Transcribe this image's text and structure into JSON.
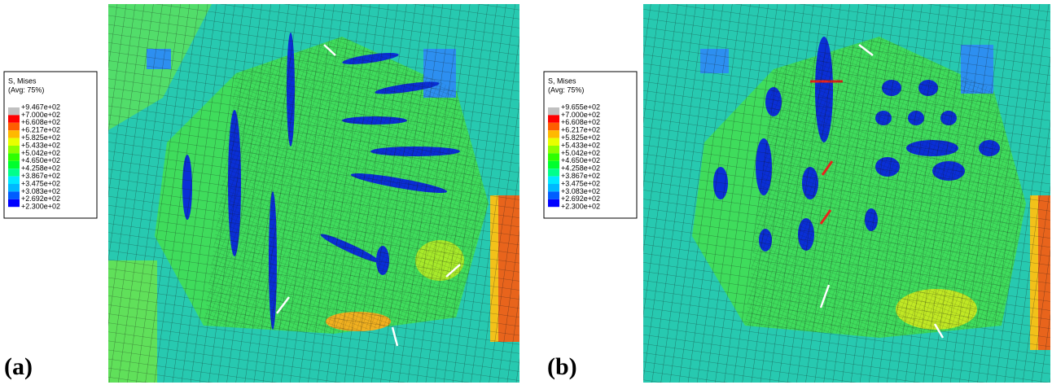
{
  "panels": [
    {
      "label": "(a)",
      "legend": {
        "title": "S, Mises",
        "subtitle": "(Avg: 75%)",
        "values": [
          "+9.467e+02",
          "+7.000e+02",
          "+6.608e+02",
          "+6.217e+02",
          "+5.825e+02",
          "+5.433e+02",
          "+5.042e+02",
          "+4.650e+02",
          "+4.258e+02",
          "+3.867e+02",
          "+3.475e+02",
          "+3.083e+02",
          "+2.692e+02",
          "+2.300e+02"
        ]
      }
    },
    {
      "label": "(b)",
      "legend": {
        "title": "S, Mises",
        "subtitle": "(Avg: 75%)",
        "values": [
          "+9.655e+02",
          "+7.000e+02",
          "+6.608e+02",
          "+6.217e+02",
          "+5.825e+02",
          "+5.433e+02",
          "+5.042e+02",
          "+4.650e+02",
          "+4.258e+02",
          "+3.867e+02",
          "+3.475e+02",
          "+3.083e+02",
          "+2.692e+02",
          "+2.300e+02"
        ]
      }
    }
  ]
}
